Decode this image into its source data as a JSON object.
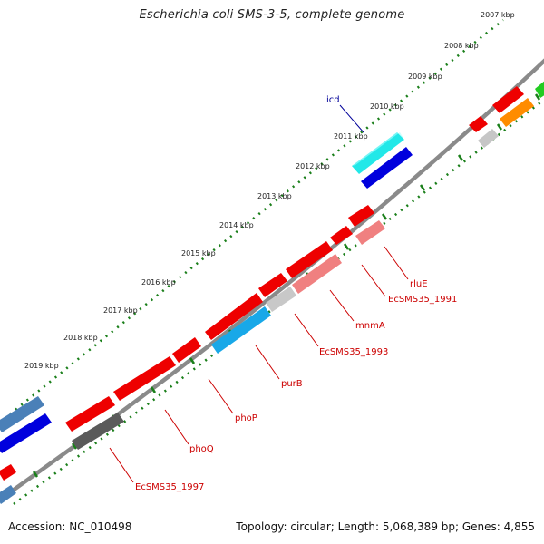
{
  "title": "Escherichia coli SMS-3-5, complete genome",
  "footer": {
    "accession": "Accession: NC_010498",
    "summary": "Topology: circular; Length: 5,068,389 bp; Genes: 4,855"
  },
  "colors": {
    "backbone": "#808080",
    "ruler_dots": "#1a7f1a",
    "gene_label": "#cc0000",
    "icd_label": "#000099",
    "red": "#ff0000",
    "pink": "#f08080",
    "grey": "#c0c0c0",
    "dark_grey": "#5a5a5a",
    "cyan": "#22e8e8",
    "sky": "#18a8e8",
    "blue": "#0000dd",
    "steel": "#4a80b8",
    "orange": "#ff8c00",
    "green": "#22cc22"
  },
  "kbp_ticks": [
    "2007 kbp",
    "2008 kbp",
    "2009 kbp",
    "2010 kbp",
    "2011 kbp",
    "2012 kbp",
    "2013 kbp",
    "2014 kbp",
    "2015 kbp",
    "2016 kbp",
    "2017 kbp",
    "2018 kbp",
    "2019 kbp"
  ],
  "gene_labels": [
    "icd",
    "rluE",
    "EcSMS35_1991",
    "mnmA",
    "EcSMS35_1993",
    "purB",
    "phoP",
    "phoQ",
    "EcSMS35_1997"
  ]
}
